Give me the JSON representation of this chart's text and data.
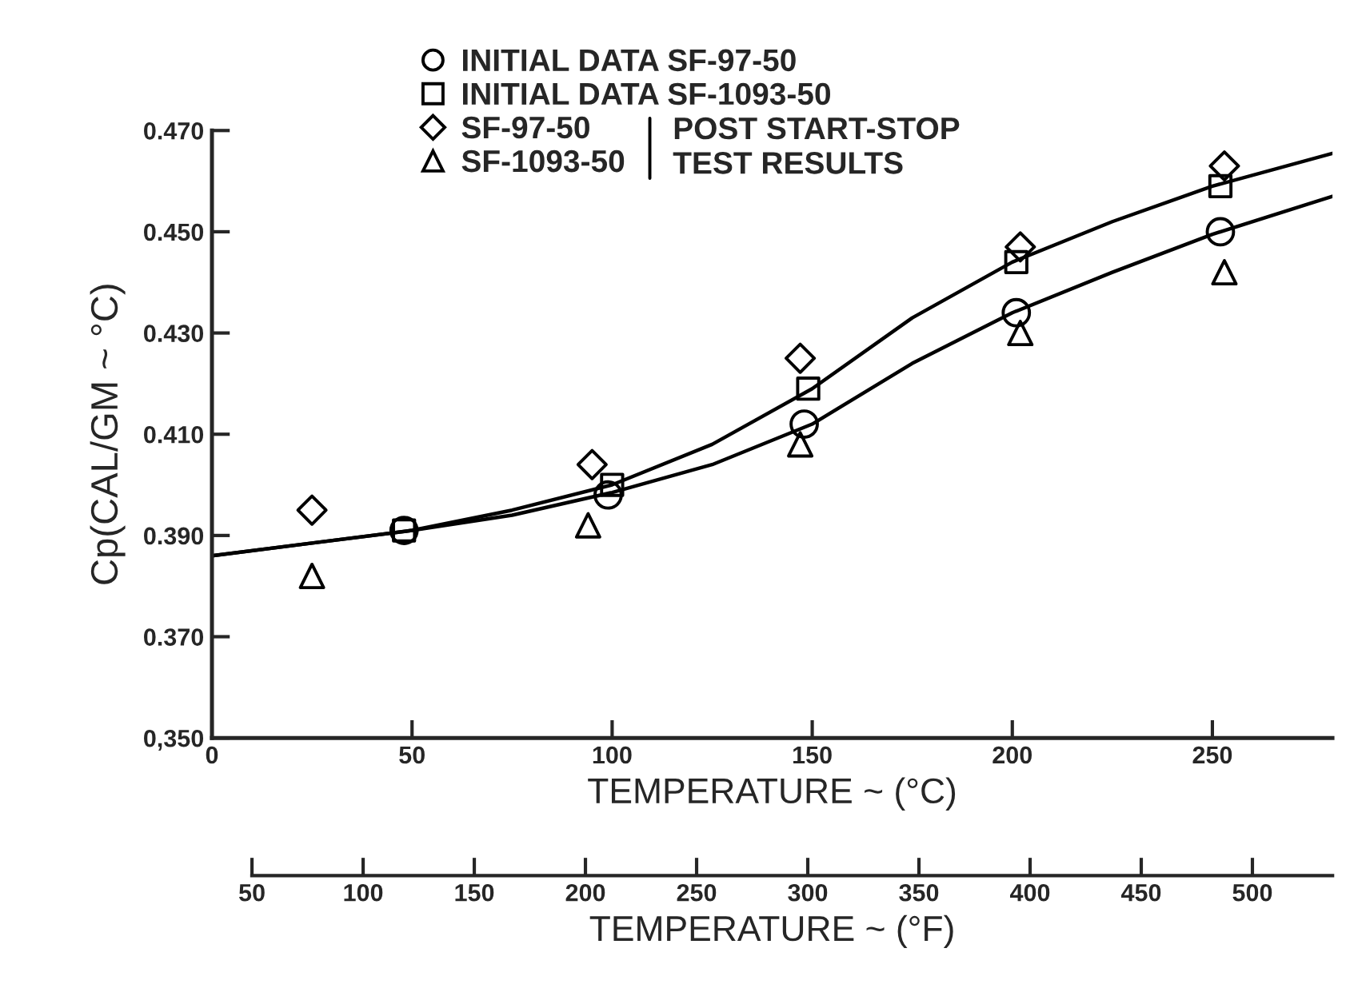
{
  "chart_data": {
    "type": "scatter",
    "xlabel": "TEMPERATURE ~ (°C)",
    "ylabel": "Cp(CAL/GM ~ °C)",
    "x2label": "TEMPERATURE ~ (°F)",
    "xlim": [
      0,
      280
    ],
    "xticks": [
      0,
      50,
      100,
      150,
      200,
      250
    ],
    "x2lim": [
      32,
      536
    ],
    "x2ticks": [
      50,
      100,
      150,
      200,
      250,
      300,
      350,
      400,
      450,
      500
    ],
    "ylim": [
      0.35,
      0.47
    ],
    "yticks": [
      {
        "value": 0.35,
        "label": "0,350"
      },
      {
        "value": 0.37,
        "label": "0.370"
      },
      {
        "value": 0.39,
        "label": "0.390"
      },
      {
        "value": 0.41,
        "label": "0.410"
      },
      {
        "value": 0.43,
        "label": "0.430"
      },
      {
        "value": 0.45,
        "label": "0.450"
      },
      {
        "value": 0.47,
        "label": "0.470"
      }
    ],
    "grid": false,
    "legend": "top",
    "annotations": [
      "POST START-STOP\nTEST RESULTS"
    ],
    "series": [
      {
        "name": "INITIAL DATA SF-97-50",
        "color": "#000000",
        "marker": "circle",
        "x": [
          48,
          99,
          148,
          201,
          252
        ],
        "values": [
          0.391,
          0.398,
          0.412,
          0.434,
          0.45
        ]
      },
      {
        "name": "INITIAL DATA SF-1093-50",
        "color": "#000000",
        "marker": "square",
        "x": [
          48,
          100,
          149,
          201,
          252
        ],
        "values": [
          0.391,
          0.4,
          0.419,
          0.444,
          0.459
        ]
      },
      {
        "name": "SF-97-50",
        "color": "#000000",
        "marker": "diamond",
        "x": [
          25,
          95,
          147,
          202,
          253
        ],
        "values": [
          0.395,
          0.404,
          0.425,
          0.447,
          0.463
        ]
      },
      {
        "name": "SF-1093-50",
        "color": "#000000",
        "marker": "triangle",
        "x": [
          25,
          94,
          147,
          202,
          253
        ],
        "values": [
          0.382,
          0.392,
          0.408,
          0.43,
          0.442
        ]
      },
      {
        "type": "line",
        "color": "#000000",
        "marker": "none",
        "x": [
          0,
          25,
          50,
          75,
          100,
          125,
          150,
          175,
          200,
          225,
          250,
          280
        ],
        "values": [
          0.386,
          0.3885,
          0.391,
          0.395,
          0.4,
          0.408,
          0.419,
          0.433,
          0.444,
          0.452,
          0.459,
          0.4655
        ]
      },
      {
        "type": "line",
        "color": "#000000",
        "marker": "none",
        "x": [
          0,
          25,
          50,
          75,
          100,
          125,
          150,
          175,
          200,
          225,
          250,
          280
        ],
        "values": [
          0.386,
          0.3885,
          0.391,
          0.394,
          0.3985,
          0.404,
          0.412,
          0.424,
          0.434,
          0.442,
          0.4495,
          0.457
        ]
      }
    ]
  }
}
